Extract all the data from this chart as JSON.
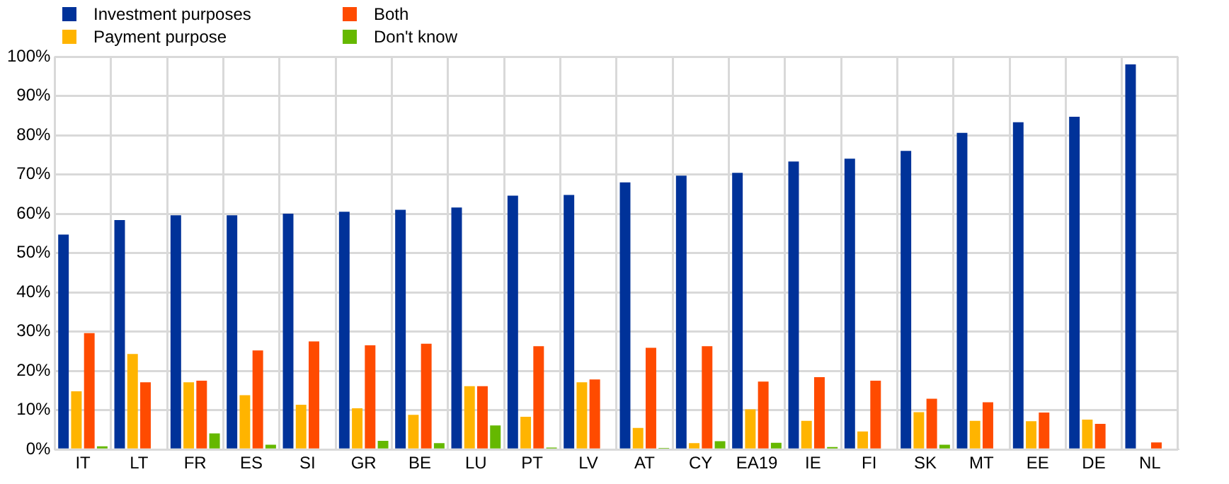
{
  "chart_data": {
    "type": "bar",
    "categories": [
      "IT",
      "LT",
      "FR",
      "ES",
      "SI",
      "GR",
      "BE",
      "LU",
      "PT",
      "LV",
      "AT",
      "CY",
      "EA19",
      "IE",
      "FI",
      "SK",
      "MT",
      "EE",
      "DE",
      "NL"
    ],
    "series": [
      {
        "name": "Investment purposes",
        "color": "#003299",
        "values": [
          54.7,
          58.4,
          59.6,
          59.6,
          60,
          60.5,
          61,
          61.6,
          64.6,
          64.8,
          68,
          69.7,
          70.4,
          73.3,
          74,
          76,
          80.6,
          83.3,
          84.7,
          98
        ]
      },
      {
        "name": "Payment purpose",
        "color": "#ffb400",
        "values": [
          14.8,
          24.3,
          17.1,
          13.8,
          11.4,
          10.5,
          8.8,
          16.1,
          8.3,
          17.1,
          5.5,
          1.6,
          10.2,
          7.3,
          4.6,
          9.5,
          7.3,
          7.2,
          7.6,
          0
        ]
      },
      {
        "name": "Both",
        "color": "#ff4b00",
        "values": [
          29.6,
          17.1,
          17.5,
          25.2,
          27.5,
          26.5,
          26.9,
          16.1,
          26.3,
          17.8,
          25.9,
          26.3,
          17.3,
          18.4,
          17.5,
          12.9,
          12,
          9.4,
          6.5,
          1.8
        ]
      },
      {
        "name": "Don't know",
        "color": "#65b800",
        "values": [
          0.8,
          0,
          4.1,
          1.2,
          0,
          2.2,
          1.6,
          6.1,
          0.5,
          0,
          0.4,
          2.1,
          1.7,
          0.6,
          0,
          1.2,
          0,
          0,
          0,
          0
        ]
      }
    ],
    "ylim": [
      0,
      100
    ],
    "yticks": [
      {
        "value": 0,
        "label": "0%"
      },
      {
        "value": 10,
        "label": "10%"
      },
      {
        "value": 20,
        "label": "20%"
      },
      {
        "value": 30,
        "label": "30%"
      },
      {
        "value": 40,
        "label": "40%"
      },
      {
        "value": 50,
        "label": "50%"
      },
      {
        "value": 60,
        "label": "60%"
      },
      {
        "value": 70,
        "label": "70%"
      },
      {
        "value": 80,
        "label": "80%"
      },
      {
        "value": 90,
        "label": "90%"
      },
      {
        "value": 100,
        "label": "100%"
      }
    ],
    "grid": true,
    "legend": "top left"
  }
}
